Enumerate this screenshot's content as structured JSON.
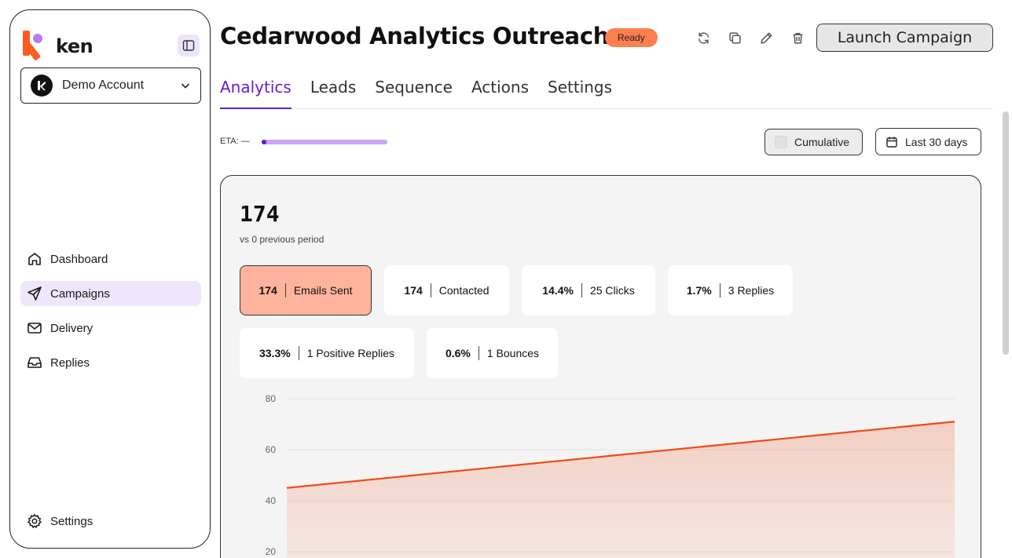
{
  "sidebar": {
    "logo_text": "ken",
    "account_name": "Demo Account",
    "nav": [
      {
        "label": "Dashboard",
        "icon": "home-icon"
      },
      {
        "label": "Campaigns",
        "icon": "send-icon"
      },
      {
        "label": "Delivery",
        "icon": "mail-icon"
      },
      {
        "label": "Replies",
        "icon": "inbox-icon"
      }
    ],
    "active_nav": "Campaigns",
    "settings_label": "Settings"
  },
  "header": {
    "title": "Cedarwood Analytics Outreach",
    "status": "Ready",
    "launch_label": "Launch Campaign"
  },
  "tabs": [
    "Analytics",
    "Leads",
    "Sequence",
    "Actions",
    "Settings"
  ],
  "active_tab": "Analytics",
  "eta": {
    "label": "ETA: —",
    "progress": 0.02
  },
  "controls": {
    "cumulative_label": "Cumulative",
    "cumulative_checked": false,
    "range_label": "Last 30 days"
  },
  "summary": {
    "value": "174",
    "comparison": "vs 0 previous period"
  },
  "stats": [
    {
      "value": "174",
      "label": "Emails Sent",
      "active": true
    },
    {
      "value": "174",
      "label": "Contacted",
      "active": false
    },
    {
      "value": "14.4%",
      "label": "25 Clicks",
      "active": false
    },
    {
      "value": "1.7%",
      "label": "3 Replies",
      "active": false
    },
    {
      "value": "33.3%",
      "label": "1 Positive Replies",
      "active": false
    },
    {
      "value": "0.6%",
      "label": "1 Bounces",
      "active": false
    }
  ],
  "colors": {
    "accent": "#6a1bd6",
    "brand": "#ff5a1f",
    "series": "#f04a14",
    "status": "#ff7e4f"
  },
  "chart_data": {
    "type": "area",
    "y_ticks": [
      "80",
      "60",
      "40",
      "20"
    ],
    "ylim": [
      0,
      80
    ],
    "grid": true,
    "series": [
      {
        "values": [
          45,
          71
        ]
      }
    ]
  }
}
